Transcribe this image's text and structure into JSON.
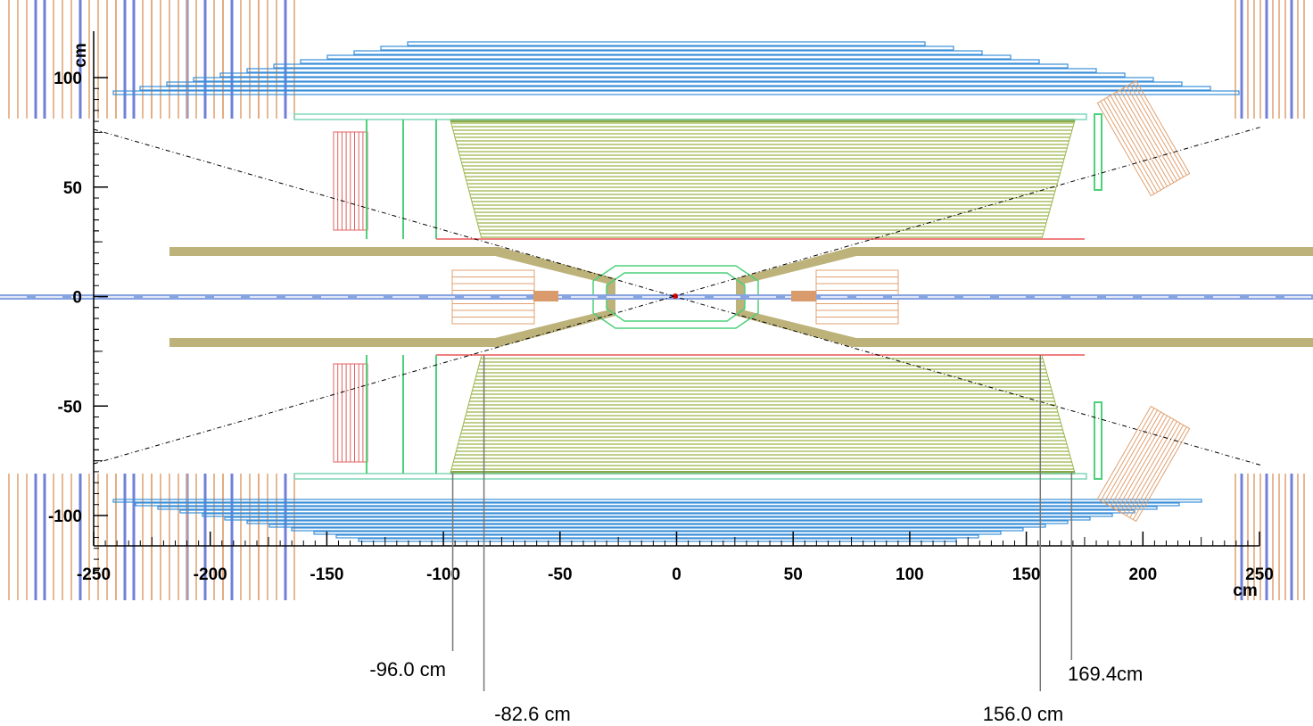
{
  "axes": {
    "x_label": "cm",
    "y_label": "cm",
    "xticks": [
      -250,
      -200,
      -150,
      -100,
      -50,
      0,
      50,
      100,
      150,
      200,
      250
    ],
    "yticks": [
      -100,
      -50,
      0,
      50,
      100
    ]
  },
  "annotations": [
    {
      "value": -96.0,
      "label": "-96.0 cm"
    },
    {
      "value": -82.6,
      "label": "-82.6 cm"
    },
    {
      "value": 156.0,
      "label": "156.0 cm"
    },
    {
      "value": 169.4,
      "label": "169.4cm"
    }
  ]
}
